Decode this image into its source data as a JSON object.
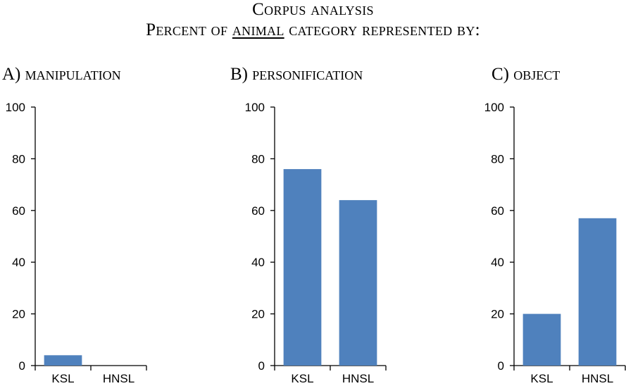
{
  "title_line1": "Corpus analysis",
  "title_line2_prefix": "Percent of ",
  "title_line2_emph": "animal",
  "title_line2_suffix": " category represented by:",
  "colors": {
    "bar": "#4f81bd",
    "axis": "#000000"
  },
  "chart_data": [
    {
      "type": "bar",
      "panel_label": "A) manipulation",
      "categories": [
        "KSL",
        "HNSL"
      ],
      "values": [
        4,
        0
      ],
      "ylim": [
        0,
        100
      ],
      "yticks": [
        0,
        20,
        40,
        60,
        80,
        100
      ],
      "xlabel": "",
      "ylabel": "",
      "grid": false
    },
    {
      "type": "bar",
      "panel_label": "B) personification",
      "categories": [
        "KSL",
        "HNSL"
      ],
      "values": [
        76,
        64
      ],
      "ylim": [
        0,
        100
      ],
      "yticks": [
        0,
        20,
        40,
        60,
        80,
        100
      ],
      "xlabel": "",
      "ylabel": "",
      "grid": false
    },
    {
      "type": "bar",
      "panel_label": "C) object",
      "categories": [
        "KSL",
        "HNSL"
      ],
      "values": [
        20,
        57
      ],
      "ylim": [
        0,
        100
      ],
      "yticks": [
        0,
        20,
        40,
        60,
        80,
        100
      ],
      "xlabel": "",
      "ylabel": "",
      "grid": false
    }
  ]
}
